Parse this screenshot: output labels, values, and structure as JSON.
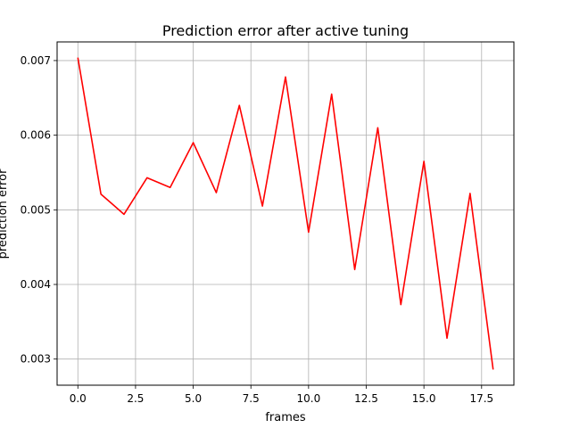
{
  "chart_data": {
    "type": "line",
    "title": "Prediction error after active tuning",
    "xlabel": "frames",
    "ylabel": "prediction error",
    "xlim": [
      -0.9,
      18.9
    ],
    "ylim": [
      0.00265,
      0.00725
    ],
    "x_ticks": [
      0.0,
      2.5,
      5.0,
      7.5,
      10.0,
      12.5,
      15.0,
      17.5
    ],
    "x_tick_labels": [
      "0.0",
      "2.5",
      "5.0",
      "7.5",
      "10.0",
      "12.5",
      "15.0",
      "17.5"
    ],
    "y_ticks": [
      0.003,
      0.004,
      0.005,
      0.006,
      0.007
    ],
    "y_tick_labels": [
      "0.003",
      "0.004",
      "0.005",
      "0.006",
      "0.007"
    ],
    "grid": true,
    "series": [
      {
        "color": "#ff0000",
        "x": [
          0,
          1,
          2,
          3,
          4,
          5,
          6,
          7,
          8,
          9,
          10,
          11,
          12,
          13,
          14,
          15,
          16,
          17,
          18
        ],
        "y": [
          0.00704,
          0.00521,
          0.00494,
          0.00543,
          0.0053,
          0.0059,
          0.00523,
          0.0064,
          0.00505,
          0.00678,
          0.0047,
          0.00655,
          0.0042,
          0.0061,
          0.00373,
          0.00565,
          0.00328,
          0.00522,
          0.00286
        ]
      }
    ]
  }
}
